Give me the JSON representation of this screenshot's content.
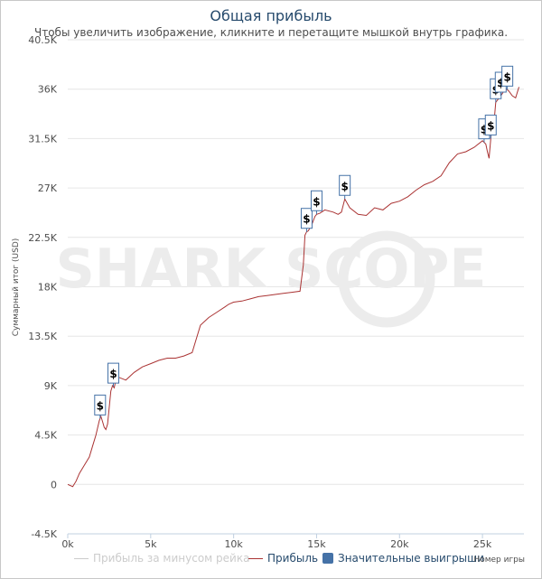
{
  "title": "Общая прибыль",
  "subtitle": "Чтобы увеличить изображение, кликните и перетащите мышкой внутрь графика.",
  "watermark": "SHARK SCOPE",
  "legend": {
    "items": [
      {
        "label": "Прибыль за минусом рейка",
        "color": "#cccccc",
        "kind": "line"
      },
      {
        "label": "Прибыль",
        "color": "#aa3333",
        "kind": "line"
      },
      {
        "label": "Значительные выигрыши",
        "color": "#4572a7",
        "kind": "box"
      }
    ]
  },
  "chart_data": {
    "type": "line",
    "title": "Общая прибыль",
    "xlabel": "Номер игры",
    "ylabel": "Суммарный итог (USD)",
    "xlim": [
      0,
      27500
    ],
    "ylim": [
      -4500,
      40500
    ],
    "x_ticks": [
      0,
      5000,
      10000,
      15000,
      20000,
      25000
    ],
    "x_tick_labels": [
      "0k",
      "5k",
      "10k",
      "15k",
      "20k",
      "25k"
    ],
    "y_ticks": [
      -4500,
      0,
      4500,
      9000,
      13500,
      18000,
      22500,
      27000,
      31500,
      36000,
      40500
    ],
    "y_tick_labels": [
      "-4.5K",
      "0",
      "4.5K",
      "9K",
      "13.5K",
      "18K",
      "22.5K",
      "27K",
      "31.5K",
      "36K",
      "40.5K"
    ],
    "grid": "horizontal",
    "legend_position": "bottom",
    "series": [
      {
        "name": "Прибыль",
        "color": "#aa3333",
        "x": [
          0,
          300,
          500,
          700,
          900,
          1100,
          1300,
          1500,
          1700,
          1900,
          2000,
          2100,
          2200,
          2300,
          2400,
          2500,
          2600,
          2700,
          2800,
          2900,
          3000,
          3500,
          4000,
          4500,
          5000,
          5500,
          6000,
          6500,
          7000,
          7500,
          8000,
          8500,
          9000,
          9500,
          9700,
          10000,
          10500,
          11000,
          11500,
          12000,
          12500,
          13000,
          13500,
          14000,
          14200,
          14300,
          14400,
          14500,
          14700,
          14900,
          15000,
          15200,
          15500,
          16000,
          16300,
          16500,
          16700,
          17000,
          17500,
          18000,
          18500,
          19000,
          19500,
          20000,
          20500,
          21000,
          21500,
          22000,
          22500,
          23000,
          23500,
          24000,
          24500,
          25000,
          25200,
          25300,
          25400,
          25500,
          25600,
          25700,
          25800,
          26000,
          26200,
          26400,
          26600,
          26800,
          27000,
          27200
        ],
        "y": [
          0,
          -200,
          300,
          1000,
          1500,
          2000,
          2500,
          3500,
          4500,
          5800,
          6200,
          5700,
          5200,
          5000,
          5500,
          7000,
          8500,
          9000,
          8800,
          9500,
          9800,
          9500,
          10200,
          10700,
          11000,
          11300,
          11500,
          11500,
          11700,
          12000,
          14500,
          15200,
          15700,
          16200,
          16400,
          16600,
          16700,
          16900,
          17100,
          17200,
          17300,
          17400,
          17500,
          17600,
          20000,
          22700,
          23000,
          23100,
          23600,
          24400,
          24600,
          24700,
          25000,
          24800,
          24600,
          24800,
          26000,
          25200,
          24600,
          24500,
          25200,
          25000,
          25600,
          25800,
          26200,
          26800,
          27300,
          27600,
          28100,
          29300,
          30100,
          30300,
          30700,
          31300,
          31000,
          30300,
          29700,
          31500,
          33500,
          33000,
          34800,
          35200,
          35600,
          36100,
          35800,
          35400,
          35200,
          36200
        ]
      }
    ],
    "markers": [
      {
        "label": "$",
        "x": 1950
      },
      {
        "label": "$",
        "x": 2750
      },
      {
        "label": "$",
        "x": 14400
      },
      {
        "label": "$",
        "x": 15000
      },
      {
        "label": "$",
        "x": 16700
      },
      {
        "label": "$",
        "x": 25100
      },
      {
        "label": "$",
        "x": 25500
      },
      {
        "label": "$",
        "x": 25800
      },
      {
        "label": "$",
        "x": 26100
      },
      {
        "label": "$",
        "x": 26500
      }
    ]
  }
}
